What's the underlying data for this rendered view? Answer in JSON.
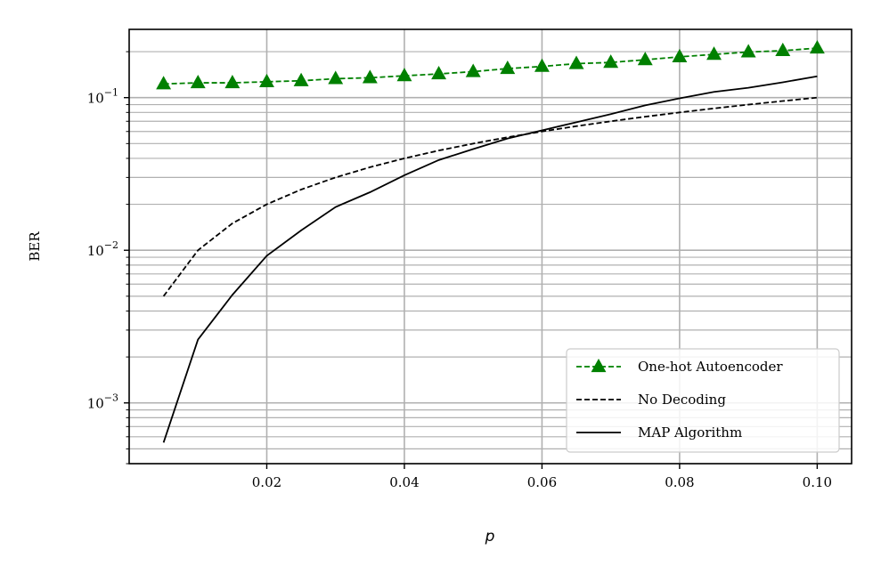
{
  "chart_data": {
    "type": "line",
    "title": "",
    "xlabel": "p",
    "ylabel": "BER",
    "xlim": [
      0.0,
      0.105
    ],
    "ylim": [
      0.0004,
      0.28
    ],
    "yscale": "log",
    "grid": true,
    "legend_position": "bottom-right",
    "x_ticks": [
      "0.02",
      "0.04",
      "0.06",
      "0.08",
      "0.10"
    ],
    "y_ticks": [
      {
        "base": "10",
        "exp": "−1",
        "value": 0.1
      },
      {
        "base": "10",
        "exp": "−2",
        "value": 0.01
      },
      {
        "base": "10",
        "exp": "−3",
        "value": 0.001
      }
    ],
    "series": [
      {
        "name": "One-hot Autoencoder",
        "color": "#008000",
        "style": "dashed",
        "marker": "triangle",
        "x": [
          0.005,
          0.01,
          0.015,
          0.02,
          0.025,
          0.03,
          0.035,
          0.04,
          0.045,
          0.05,
          0.055,
          0.06,
          0.065,
          0.07,
          0.075,
          0.08,
          0.085,
          0.09,
          0.095,
          0.1
        ],
        "y": [
          0.123,
          0.125,
          0.125,
          0.127,
          0.129,
          0.133,
          0.135,
          0.139,
          0.143,
          0.148,
          0.155,
          0.16,
          0.167,
          0.17,
          0.177,
          0.185,
          0.192,
          0.199,
          0.203,
          0.211
        ]
      },
      {
        "name": "No Decoding",
        "color": "#000000",
        "style": "dashed",
        "marker": "none",
        "x": [
          0.005,
          0.01,
          0.015,
          0.02,
          0.025,
          0.03,
          0.035,
          0.04,
          0.045,
          0.05,
          0.055,
          0.06,
          0.065,
          0.07,
          0.075,
          0.08,
          0.085,
          0.09,
          0.095,
          0.1
        ],
        "y": [
          0.005,
          0.01,
          0.015,
          0.02,
          0.025,
          0.03,
          0.035,
          0.04,
          0.045,
          0.05,
          0.055,
          0.06,
          0.065,
          0.07,
          0.075,
          0.08,
          0.085,
          0.09,
          0.095,
          0.1
        ]
      },
      {
        "name": "MAP Algorithm",
        "color": "#000000",
        "style": "solid",
        "marker": "none",
        "x": [
          0.005,
          0.01,
          0.015,
          0.02,
          0.025,
          0.03,
          0.035,
          0.04,
          0.045,
          0.05,
          0.055,
          0.06,
          0.065,
          0.07,
          0.075,
          0.08,
          0.085,
          0.09,
          0.095,
          0.1
        ],
        "y": [
          0.00055,
          0.0026,
          0.0051,
          0.0092,
          0.0135,
          0.0192,
          0.024,
          0.031,
          0.039,
          0.046,
          0.054,
          0.061,
          0.069,
          0.078,
          0.089,
          0.099,
          0.109,
          0.116,
          0.126,
          0.138
        ]
      }
    ]
  }
}
